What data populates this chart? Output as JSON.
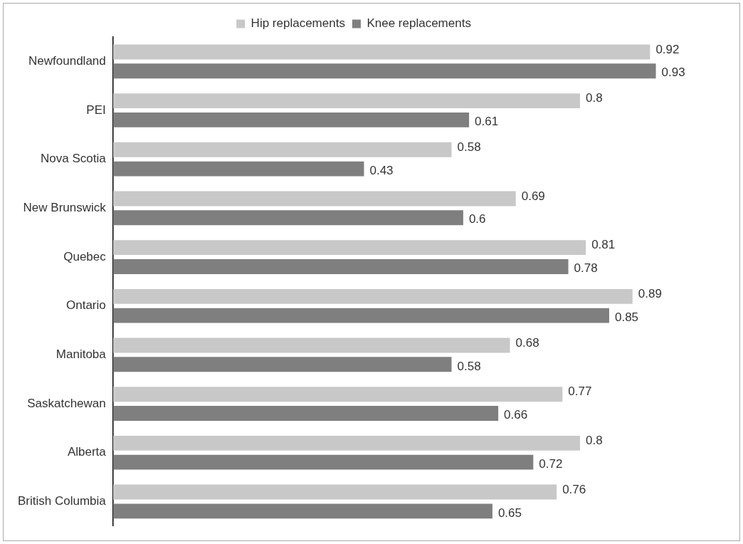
{
  "chart_data": {
    "type": "bar",
    "orientation": "horizontal",
    "categories": [
      "Newfoundland",
      "PEI",
      "Nova Scotia",
      "New Brunswick",
      "Quebec",
      "Ontario",
      "Manitoba",
      "Saskatchewan",
      "Alberta",
      "British Columbia"
    ],
    "series": [
      {
        "name": "Hip replacements",
        "color": "#c8c8c8",
        "values": [
          0.92,
          0.8,
          0.58,
          0.69,
          0.81,
          0.89,
          0.68,
          0.77,
          0.8,
          0.76
        ]
      },
      {
        "name": "Knee replacements",
        "color": "#7f7f80",
        "values": [
          0.93,
          0.61,
          0.43,
          0.6,
          0.78,
          0.85,
          0.58,
          0.66,
          0.72,
          0.65
        ]
      }
    ],
    "data_labels": true,
    "legend": "top",
    "grid": false,
    "tick_labels": "y"
  }
}
